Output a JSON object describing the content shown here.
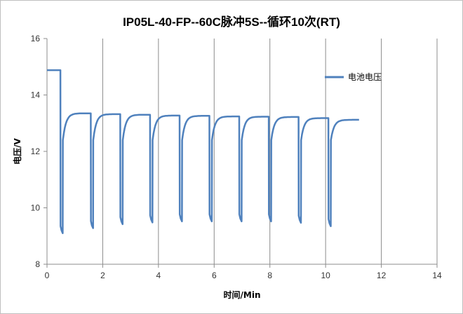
{
  "chart_data": {
    "type": "line",
    "title": "IP05L-40-FP--60C脉冲5S--循环10次(RT)",
    "xlabel": "时间/Min",
    "ylabel": "电压/V",
    "xlim": [
      0,
      14
    ],
    "ylim": [
      8,
      16
    ],
    "xticks": [
      0,
      2,
      4,
      6,
      8,
      10,
      12,
      14
    ],
    "yticks": [
      8,
      10,
      12,
      14,
      16
    ],
    "grid": "vertical",
    "legend_position": "right",
    "series": [
      {
        "name": "电池电压",
        "color": "#4f81bd",
        "pulses": [
          {
            "start": 0.48,
            "high": 14.88,
            "min": 9.1
          },
          {
            "start": 1.57,
            "high": 13.35,
            "min": 9.28
          },
          {
            "start": 2.63,
            "high": 13.32,
            "min": 9.42
          },
          {
            "start": 3.7,
            "high": 13.3,
            "min": 9.48
          },
          {
            "start": 4.76,
            "high": 13.27,
            "min": 9.52
          },
          {
            "start": 5.83,
            "high": 13.26,
            "min": 9.52
          },
          {
            "start": 6.9,
            "high": 13.24,
            "min": 9.52
          },
          {
            "start": 7.96,
            "high": 13.23,
            "min": 9.52
          },
          {
            "start": 9.03,
            "high": 13.22,
            "min": 9.47
          },
          {
            "start": 10.1,
            "high": 13.18,
            "min": 9.35
          }
        ],
        "end": {
          "x": 11.2,
          "y": 13.12
        }
      }
    ]
  }
}
